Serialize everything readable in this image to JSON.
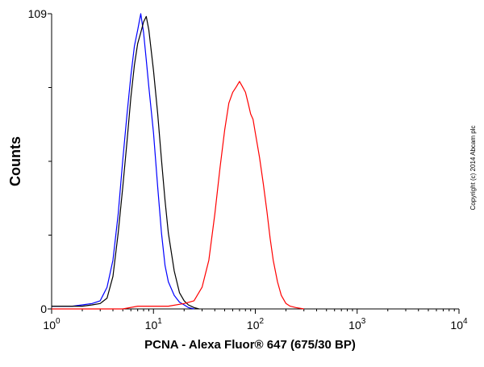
{
  "chart_data": {
    "type": "line",
    "xlabel": "PCNA - Alexa Fluor® 647 (675/30 BP)",
    "ylabel": "Counts",
    "x_scale": "log",
    "xlim": [
      1,
      10000
    ],
    "ylim": [
      0,
      109
    ],
    "x_ticks": [
      {
        "value": 1,
        "base": "10",
        "exp": "0"
      },
      {
        "value": 10,
        "base": "10",
        "exp": "1"
      },
      {
        "value": 100,
        "base": "10",
        "exp": "2"
      },
      {
        "value": 1000,
        "base": "10",
        "exp": "3"
      },
      {
        "value": 10000,
        "base": "10",
        "exp": "4"
      }
    ],
    "y_tick_labels": [
      {
        "value": 0,
        "label": "0"
      },
      {
        "value": 109,
        "label": "109"
      }
    ],
    "y_minor_ticks": [
      27.25,
      54.5,
      81.75
    ],
    "series": [
      {
        "color": "#0000ff",
        "points": [
          [
            1,
            1
          ],
          [
            1.6,
            1
          ],
          [
            2,
            1.5
          ],
          [
            2.5,
            2
          ],
          [
            3,
            3
          ],
          [
            3.5,
            8
          ],
          [
            4,
            18
          ],
          [
            4.5,
            35
          ],
          [
            5,
            55
          ],
          [
            5.5,
            72
          ],
          [
            6,
            86
          ],
          [
            6.5,
            97
          ],
          [
            7,
            103
          ],
          [
            7.5,
            109
          ],
          [
            8,
            102
          ],
          [
            8.5,
            92
          ],
          [
            9,
            82
          ],
          [
            10,
            65
          ],
          [
            11,
            45
          ],
          [
            12,
            28
          ],
          [
            13,
            16
          ],
          [
            14,
            10
          ],
          [
            16,
            5
          ],
          [
            18,
            2.5
          ],
          [
            20,
            1.5
          ],
          [
            22,
            0.5
          ],
          [
            25,
            0
          ]
        ]
      },
      {
        "color": "#000000",
        "points": [
          [
            1,
            1
          ],
          [
            1.6,
            1
          ],
          [
            2,
            1
          ],
          [
            2.5,
            1.5
          ],
          [
            3,
            2
          ],
          [
            3.5,
            4
          ],
          [
            4,
            12
          ],
          [
            4.5,
            28
          ],
          [
            5,
            45
          ],
          [
            5.5,
            62
          ],
          [
            6,
            78
          ],
          [
            6.5,
            90
          ],
          [
            7,
            98
          ],
          [
            7.5,
            102
          ],
          [
            8,
            106
          ],
          [
            8.5,
            108
          ],
          [
            9,
            103
          ],
          [
            10,
            88
          ],
          [
            11,
            72
          ],
          [
            12,
            55
          ],
          [
            13,
            40
          ],
          [
            14,
            28
          ],
          [
            16,
            14
          ],
          [
            18,
            6
          ],
          [
            20,
            3
          ],
          [
            22,
            1.5
          ],
          [
            25,
            0.5
          ],
          [
            28,
            0
          ]
        ]
      },
      {
        "color": "#ff0000",
        "points": [
          [
            1,
            0
          ],
          [
            5,
            0
          ],
          [
            7,
            1
          ],
          [
            10,
            1
          ],
          [
            14,
            1
          ],
          [
            20,
            2
          ],
          [
            25,
            3
          ],
          [
            30,
            8
          ],
          [
            35,
            18
          ],
          [
            40,
            35
          ],
          [
            45,
            52
          ],
          [
            50,
            66
          ],
          [
            55,
            76
          ],
          [
            60,
            80
          ],
          [
            65,
            82
          ],
          [
            70,
            84
          ],
          [
            75,
            82
          ],
          [
            80,
            80
          ],
          [
            85,
            76
          ],
          [
            90,
            72
          ],
          [
            95,
            70
          ],
          [
            100,
            65
          ],
          [
            110,
            56
          ],
          [
            120,
            46
          ],
          [
            130,
            36
          ],
          [
            140,
            26
          ],
          [
            150,
            18
          ],
          [
            165,
            10
          ],
          [
            180,
            5
          ],
          [
            200,
            2
          ],
          [
            220,
            1
          ],
          [
            250,
            0.5
          ],
          [
            300,
            0
          ]
        ]
      }
    ]
  },
  "copyright": "Copyright (c) 2014 Abcam plc"
}
